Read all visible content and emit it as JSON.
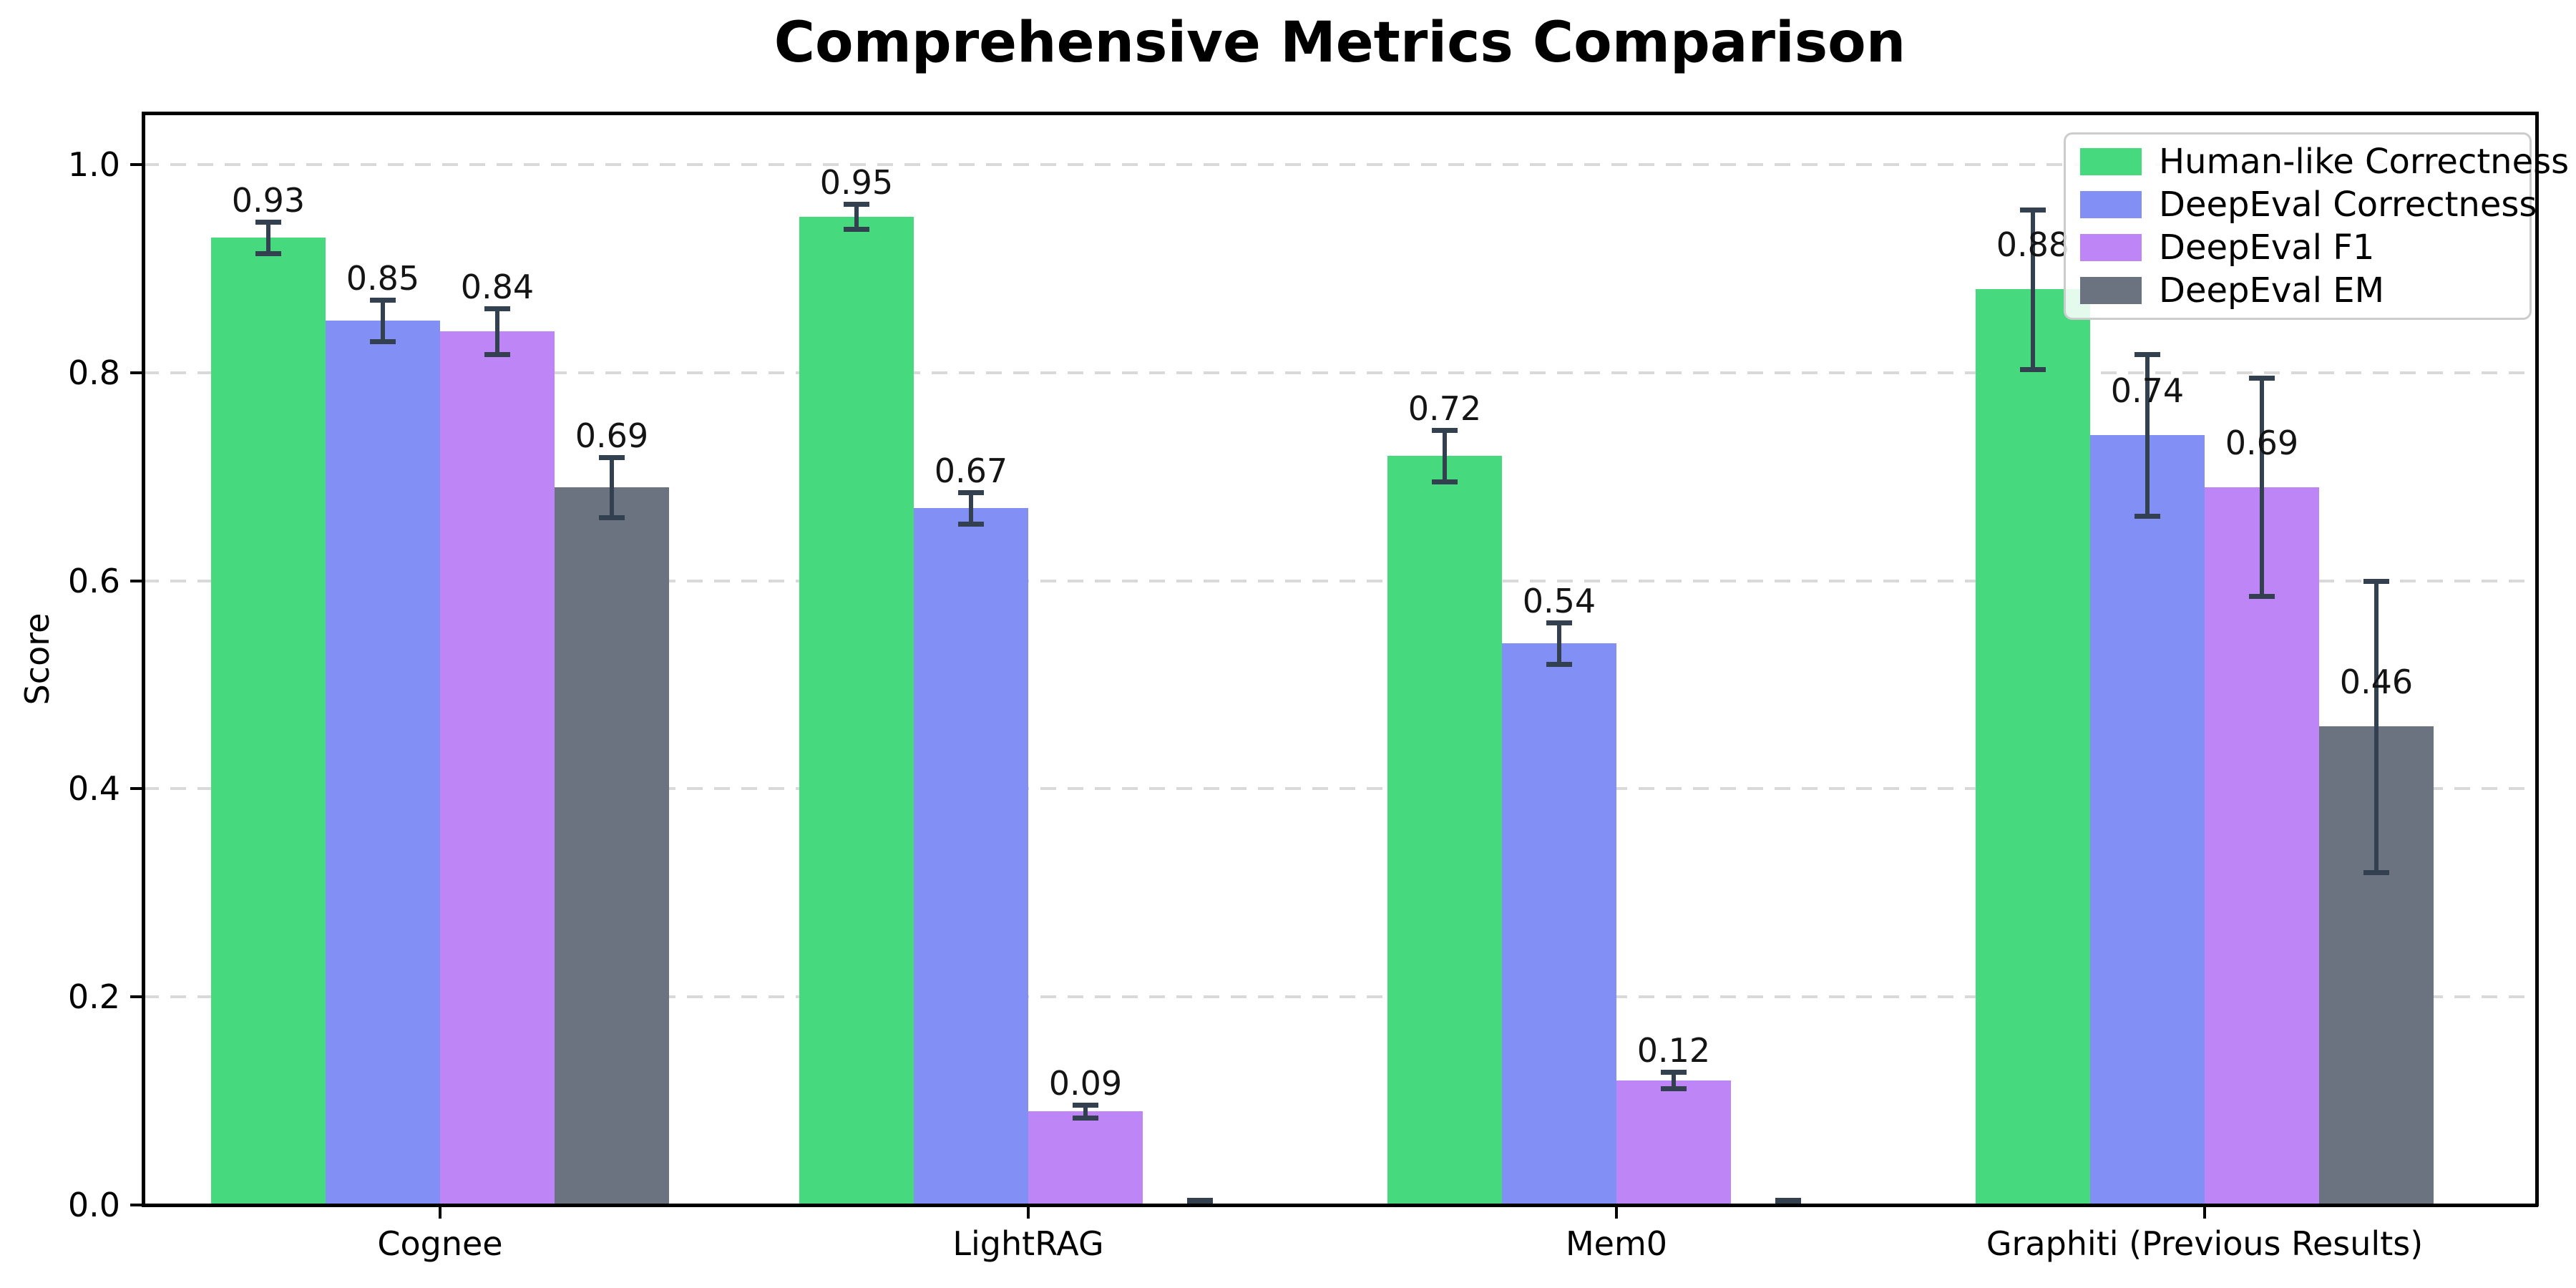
{
  "chart_data": {
    "type": "bar",
    "title": "Comprehensive Metrics Comparison",
    "xlabel": "",
    "ylabel": "Score",
    "categories": [
      "Cognee",
      "LightRAG",
      "Mem0",
      "Graphiti (Previous Results)"
    ],
    "series": [
      {
        "name": "Human-like Correctness",
        "color": "#47d97e",
        "values": [
          0.93,
          0.95,
          0.72,
          0.88
        ],
        "errors": [
          0.015,
          0.012,
          0.025,
          0.077
        ],
        "labels": [
          "0.93",
          "0.95",
          "0.72",
          "0.88"
        ]
      },
      {
        "name": "DeepEval Correctness",
        "color": "#828ff5",
        "values": [
          0.85,
          0.67,
          0.54,
          0.74
        ],
        "errors": [
          0.02,
          0.015,
          0.02,
          0.078
        ],
        "labels": [
          "0.85",
          "0.67",
          "0.54",
          "0.74"
        ]
      },
      {
        "name": "DeepEval F1",
        "color": "#bd85f6",
        "values": [
          0.84,
          0.09,
          0.12,
          0.69
        ],
        "errors": [
          0.022,
          0.006,
          0.008,
          0.105
        ],
        "labels": [
          "0.84",
          "0.09",
          "0.12",
          "0.69"
        ]
      },
      {
        "name": "DeepEval EM",
        "color": "#6b7280",
        "values": [
          0.69,
          0.0,
          0.0,
          0.46
        ],
        "errors": [
          0.029,
          0.005,
          0.005,
          0.14
        ],
        "labels": [
          "0.69",
          null,
          null,
          "0.46"
        ]
      }
    ],
    "yticks": [
      "0.0",
      "0.2",
      "0.4",
      "0.6",
      "0.8",
      "1.0"
    ],
    "ylim": [
      0.0,
      1.05
    ],
    "grid": "horizontal-dashed",
    "legend_position": "upper right",
    "error_bar_color": "#33404f",
    "background_color": "#ffffff",
    "gridline_color": "#d9d9d9"
  }
}
